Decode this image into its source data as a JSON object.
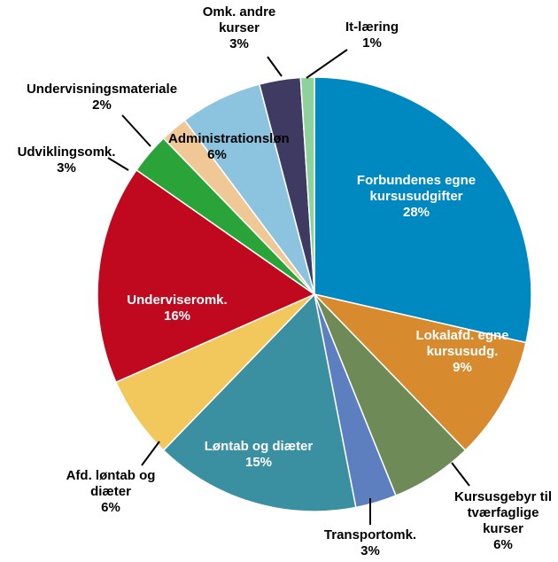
{
  "chart_data": {
    "type": "pie",
    "categories": [
      "Forbundenes egne kursusudgifter",
      "Lokalafd. egne kursusudg.",
      "Kursusgebyr til tværfaglige kurser",
      "Transportomk.",
      "Løntab og diæter",
      "Afd. løntab og diæter",
      "Underviseromk.",
      "Udviklingsomk.",
      "Undervisningsmateriale",
      "Administrationsløn",
      "Omk. andre kurser",
      "It-læring"
    ],
    "values": [
      28,
      9,
      6,
      3,
      15,
      6,
      16,
      3,
      2,
      6,
      3,
      1
    ],
    "value_labels": [
      "28%",
      "9%",
      "6%",
      "3%",
      "15%",
      "6%",
      "16%",
      "3%",
      "2%",
      "6%",
      "3%",
      "1%"
    ],
    "colors": [
      "#0088c0",
      "#d88a2e",
      "#6e8a57",
      "#5e7fbf",
      "#3a8fa0",
      "#f2c75c",
      "#c0081f",
      "#2aa438",
      "#f0c896",
      "#8cc4e0",
      "#3f3a62",
      "#8fd19a"
    ]
  }
}
